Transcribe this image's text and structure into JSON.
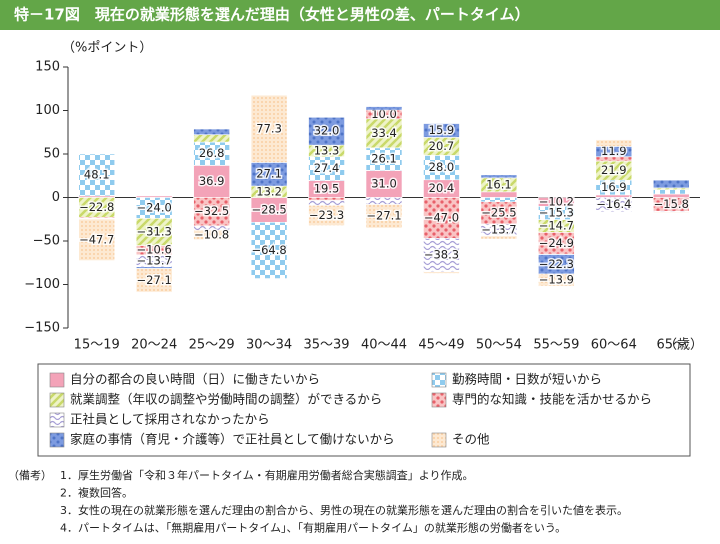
{
  "chart_data": {
    "type": "stacked-bar",
    "title": "特－17図　現在の就業形態を選んだ理由（女性と男性の差、パートタイム）",
    "y_unit_label": "（%ポイント）",
    "x_unit_label": "（歳）",
    "categories": [
      "15～19",
      "20～24",
      "25～29",
      "30～34",
      "35～39",
      "40～44",
      "45～49",
      "50～54",
      "55～59",
      "60～64",
      "65～"
    ],
    "ylim": [
      -150,
      150
    ],
    "yticks": [
      {
        "value": -150,
        "label": "−150"
      },
      {
        "value": -100,
        "label": "−100"
      },
      {
        "value": -50,
        "label": "−50"
      },
      0,
      50,
      100,
      150
    ],
    "series": [
      {
        "name": "自分の都合の良い時間（日）に働きたいから",
        "color": "#f3a3b8",
        "pattern": "solid",
        "values": [
          1.9,
          1.8,
          36.9,
          -28.5,
          19.5,
          31.0,
          20.4,
          6.5,
          -10.2,
          3.0,
          4.0
        ],
        "value_labels": [
          null,
          null,
          "36.9",
          "−28.5",
          "19.5",
          "31.0",
          "20.4",
          null,
          "−10.2",
          null,
          null
        ]
      },
      {
        "name": "勤務時間・日数が短いから",
        "color": "#8fcbee",
        "pattern": "checker",
        "values": [
          48.1,
          -24.0,
          26.8,
          -64.8,
          27.4,
          26.1,
          28.0,
          -5.0,
          -15.3,
          16.9,
          5.0
        ],
        "value_labels": [
          "48.1",
          "−24.0",
          "26.8",
          "−64.8",
          "27.4",
          "26.1",
          "28.0",
          null,
          "−15.3",
          "16.9",
          null
        ]
      },
      {
        "name": "就業調整（年収の調整や労働時間の調整）ができるから",
        "color": "#c9d96a",
        "pattern": "stripe",
        "values": [
          -22.8,
          -31.3,
          8.5,
          13.2,
          13.3,
          33.4,
          20.7,
          16.1,
          -14.7,
          21.9,
          2.0
        ],
        "value_labels": [
          "−22.8",
          "−31.3",
          null,
          "13.2",
          "13.3",
          "33.4",
          "20.7",
          "16.1",
          "−14.7",
          "21.9",
          null
        ]
      },
      {
        "name": "専門的な知識・技能を活かせるから",
        "color": "#e8606a",
        "pattern": "dots",
        "values": [
          -1.2,
          -10.6,
          -32.5,
          -0.5,
          -3.5,
          10.0,
          -47.0,
          -25.5,
          -24.9,
          5.0,
          -15.8
        ],
        "value_labels": [
          null,
          "−10.6",
          "−32.5",
          null,
          null,
          "10.0",
          "−47.0",
          "−25.5",
          "−24.9",
          null,
          "−15.8"
        ]
      },
      {
        "name": "正社員として採用されなかったから",
        "color": "#a79fd6",
        "pattern": "wave",
        "values": [
          -0.5,
          -13.7,
          -5.2,
          -0.3,
          -5.5,
          -8.0,
          -38.3,
          -13.7,
          -0.5,
          -16.4,
          -1.0
        ],
        "value_labels": [
          null,
          "−13.7",
          null,
          null,
          null,
          null,
          "−38.3",
          "−13.7",
          null,
          "−16.4",
          null
        ]
      },
      {
        "name": "家庭の事情（育児・介護等）で正社員として働けないから",
        "color": "#4f74c6",
        "pattern": "bluedots",
        "values": [
          -0.3,
          -2.0,
          6.5,
          27.1,
          32.0,
          4.0,
          15.9,
          3.5,
          -22.3,
          11.9,
          9.0
        ],
        "value_labels": [
          null,
          null,
          null,
          "27.1",
          "32.0",
          null,
          "15.9",
          null,
          "−22.3",
          "11.9",
          null
        ]
      },
      {
        "name": "その他",
        "color": "#f9cfa3",
        "pattern": "fine",
        "values": [
          -47.7,
          -27.1,
          -10.8,
          77.3,
          -23.3,
          -27.1,
          -2.0,
          -3.5,
          -13.9,
          7.5,
          -1.0
        ],
        "value_labels": [
          "−47.7",
          "−27.1",
          "−10.8",
          "77.3",
          "−23.3",
          "−27.1",
          null,
          null,
          "−13.9",
          null,
          null
        ]
      }
    ]
  },
  "notes": {
    "label": "（備考）",
    "items": [
      "1．厚生労働省「令和３年パートタイム・有期雇用労働者総合実態調査」より作成。",
      "2．複数回答。",
      "3．女性の現在の就業形態を選んだ理由の割合から、男性の現在の就業形態を選んだ理由の割合を引いた値を表示。",
      "4．パートタイムは、「無期雇用パートタイム」、「有期雇用パートタイム」の就業形態の労働者をいう。"
    ]
  }
}
